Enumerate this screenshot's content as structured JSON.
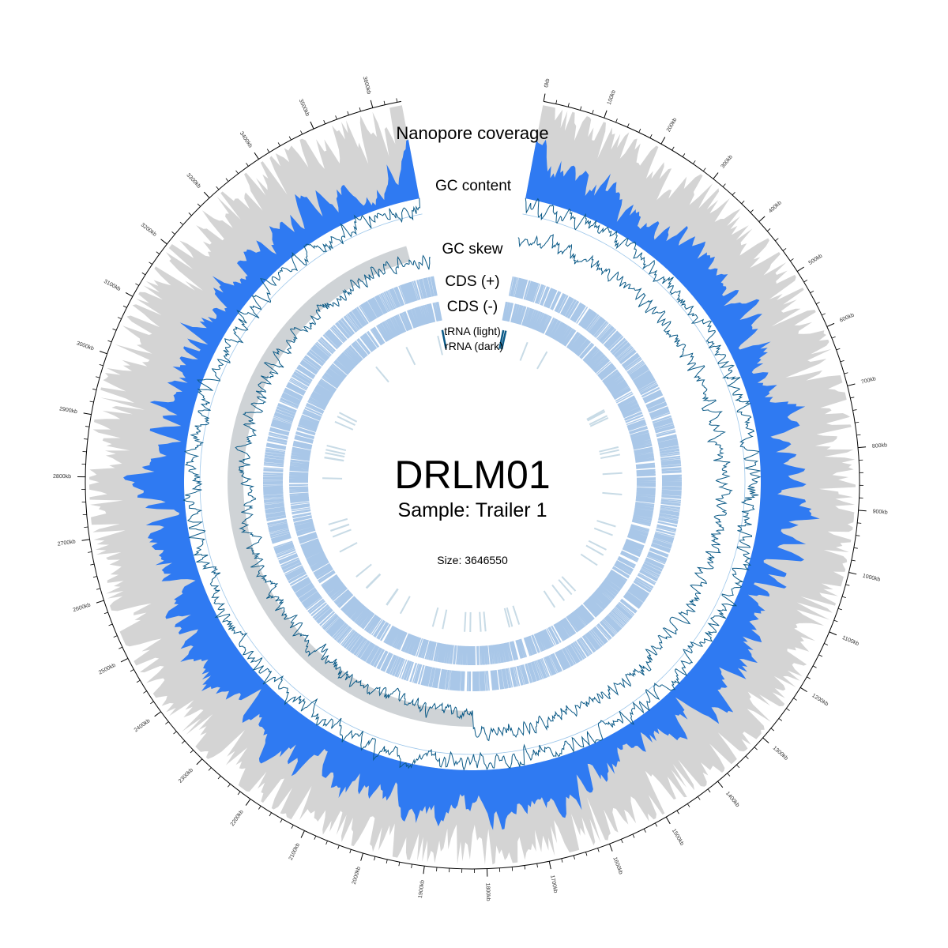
{
  "genome": {
    "name": "DRLM01",
    "sample_label": "Sample: Trailer 1",
    "size_label": "Size: 3646550",
    "size_bp": 3646550
  },
  "track_labels": {
    "coverage": "Nanopore coverage",
    "gc_content": "GC content",
    "gc_skew": "GC skew",
    "cds_plus": "CDS (+)",
    "cds_minus": "CDS (-)",
    "trna": "tRNA (light)",
    "rrna": "rRNA (dark)"
  },
  "colors": {
    "coverage_fill": "#2f7af2",
    "coverage_max": "#d4d4d4",
    "gc_line": "#0b5a87",
    "gc_baseline": "#9cc6ea",
    "skew_negative_shade": "#cfd3d6",
    "cds": "#a9c7e8",
    "trna": "#c8dbe6",
    "rrna": "#0b5a87",
    "axis": "#000000"
  },
  "axis": {
    "tick_labels": [
      "0kb",
      "100kb",
      "200kb",
      "300kb",
      "400kb",
      "500kb",
      "600kb",
      "700kb",
      "800kb",
      "900kb",
      "1000kb",
      "1100kb",
      "1200kb",
      "1300kb",
      "1400kb",
      "1500kb",
      "1600kb",
      "1700kb",
      "1800kb",
      "1900kb",
      "2000kb",
      "2100kb",
      "2200kb",
      "2300kb",
      "2400kb",
      "2500kb",
      "2600kb",
      "2700kb",
      "2800kb",
      "2900kb",
      "3000kb",
      "3100kb",
      "3200kb",
      "3300kb",
      "3400kb",
      "3500kb",
      "3600kb"
    ]
  },
  "chart_data": {
    "type": "circular genome map",
    "features": {
      "rrna_positions_kb": [
        3640,
        10,
        20
      ]
    }
  }
}
